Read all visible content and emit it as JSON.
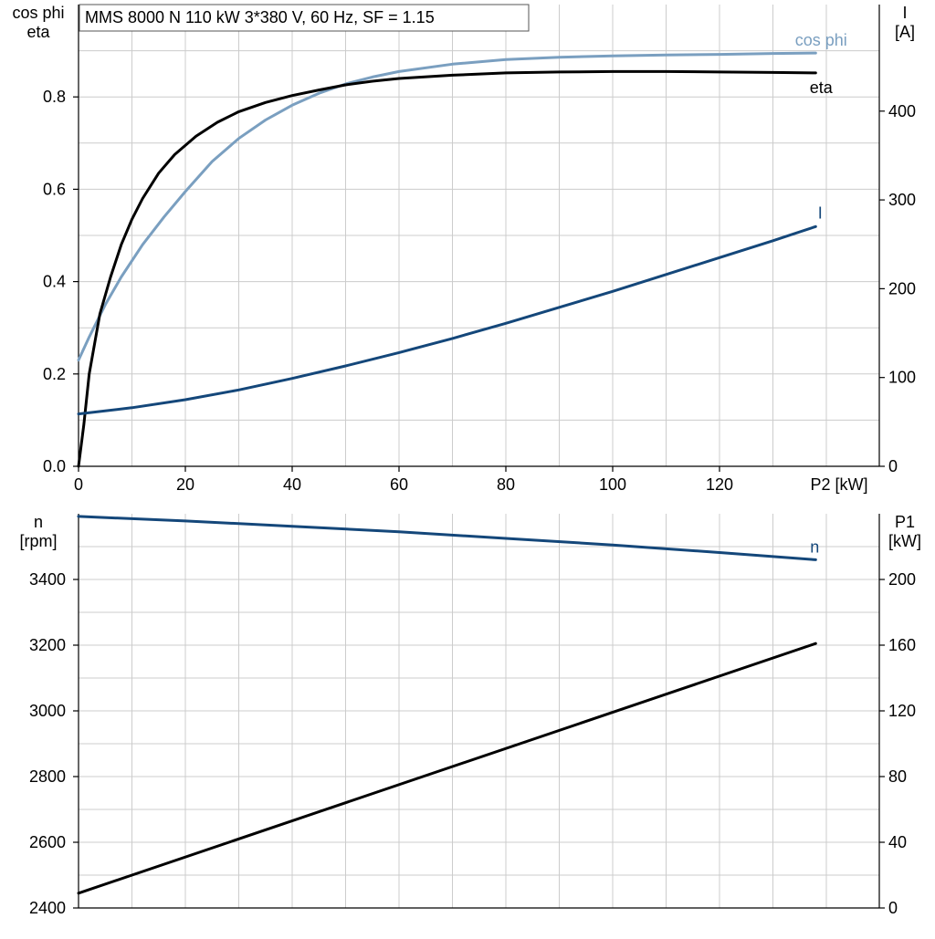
{
  "chart_data": [
    {
      "type": "line",
      "title": "MMS 8000 N   110 kW   3*380 V, 60 Hz, SF = 1.15",
      "xlabel": "P2 [kW]",
      "xlim": [
        0,
        150
      ],
      "x_ticks": [
        "0",
        "20",
        "40",
        "60",
        "80",
        "100",
        "120"
      ],
      "y_left_label_lines": [
        "cos phi",
        "eta"
      ],
      "ylim_left": [
        0,
        1.0
      ],
      "y_left_ticks": [
        "0.0",
        "0.2",
        "0.4",
        "0.6",
        "0.8"
      ],
      "y_right_label_lines": [
        "I",
        "[A]"
      ],
      "ylim_right": [
        0,
        520
      ],
      "y_right_ticks": [
        "0",
        "100",
        "200",
        "300",
        "400"
      ],
      "grid": true,
      "series": [
        {
          "name": "cos phi",
          "axis": "left",
          "color": "#7a9fc0",
          "x": [
            0,
            2,
            5,
            8,
            12,
            16,
            20,
            25,
            30,
            35,
            40,
            45,
            50,
            55,
            60,
            70,
            80,
            90,
            100,
            110,
            120,
            130,
            138
          ],
          "values": [
            0.23,
            0.28,
            0.35,
            0.41,
            0.48,
            0.54,
            0.595,
            0.66,
            0.71,
            0.75,
            0.782,
            0.808,
            0.828,
            0.843,
            0.855,
            0.871,
            0.881,
            0.886,
            0.889,
            0.891,
            0.892,
            0.894,
            0.895
          ]
        },
        {
          "name": "eta",
          "axis": "left",
          "color": "#000000",
          "x": [
            0,
            1,
            2,
            4,
            6,
            8,
            10,
            12,
            15,
            18,
            22,
            26,
            30,
            35,
            40,
            45,
            50,
            55,
            60,
            70,
            80,
            90,
            100,
            110,
            120,
            130,
            138
          ],
          "values": [
            0.0,
            0.09,
            0.2,
            0.33,
            0.41,
            0.48,
            0.535,
            0.58,
            0.635,
            0.675,
            0.715,
            0.745,
            0.768,
            0.788,
            0.803,
            0.815,
            0.826,
            0.834,
            0.84,
            0.847,
            0.852,
            0.854,
            0.855,
            0.855,
            0.854,
            0.853,
            0.852
          ]
        },
        {
          "name": "I",
          "axis": "right",
          "color": "#14477a",
          "x": [
            0,
            10,
            20,
            30,
            40,
            50,
            60,
            70,
            80,
            90,
            100,
            110,
            120,
            130,
            138
          ],
          "values": [
            59,
            66,
            75,
            86,
            99,
            113,
            128,
            144,
            161,
            179,
            197,
            216,
            235,
            254,
            270
          ]
        }
      ]
    },
    {
      "type": "line",
      "title": "",
      "xlim": [
        0,
        150
      ],
      "y_left_label_lines": [
        "n",
        "[rpm]"
      ],
      "ylim_left": [
        2400,
        3600
      ],
      "y_left_ticks": [
        "2400",
        "2600",
        "2800",
        "3000",
        "3200",
        "3400"
      ],
      "y_right_label_lines": [
        "P1",
        "[kW]"
      ],
      "ylim_right": [
        0,
        240
      ],
      "y_right_ticks": [
        "0",
        "40",
        "80",
        "120",
        "160",
        "200"
      ],
      "grid": true,
      "series": [
        {
          "name": "n",
          "axis": "left",
          "color": "#14477a",
          "x": [
            0,
            20,
            40,
            60,
            80,
            100,
            120,
            138
          ],
          "values": [
            3592,
            3578,
            3562,
            3545,
            3525,
            3505,
            3482,
            3460
          ]
        },
        {
          "name": "",
          "axis": "right",
          "color": "#000000",
          "x": [
            0,
            138
          ],
          "values": [
            9,
            161
          ]
        }
      ]
    }
  ]
}
